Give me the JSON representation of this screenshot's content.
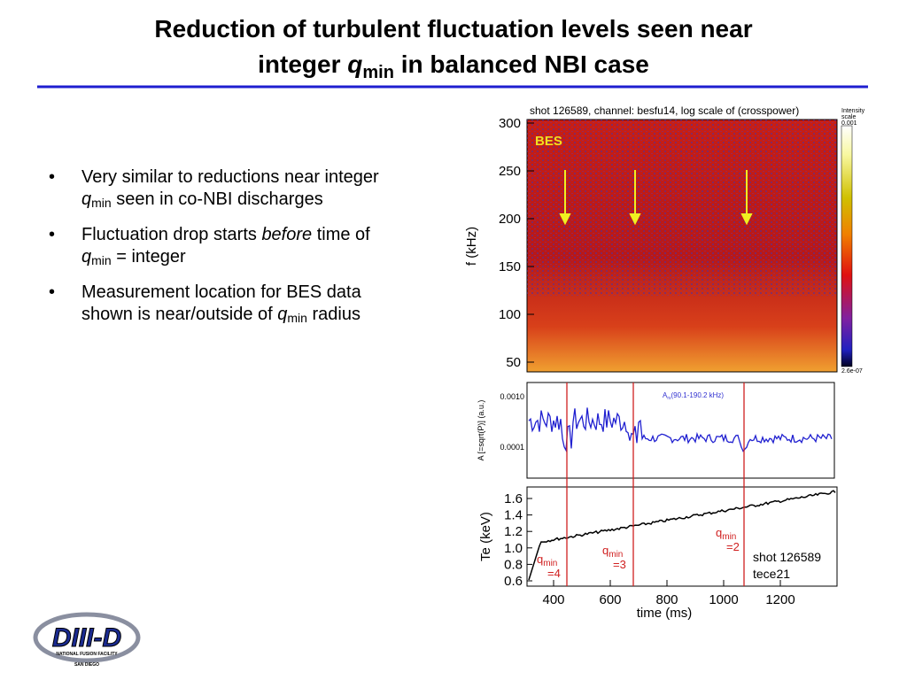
{
  "title": {
    "line1": "Reduction of turbulent fluctuation levels seen near",
    "line2_pre": "integer ",
    "q": "q",
    "sub": "min",
    "line2_post": " in balanced NBI case"
  },
  "bullets": [
    [
      {
        "text": "Very similar to reductions near integer "
      },
      {
        "text": "q",
        "style": "italic"
      },
      {
        "text": "min",
        "style": "sub"
      },
      {
        "text": " seen in co-NBI discharges"
      }
    ],
    [
      {
        "text": "Fluctuation drop starts "
      },
      {
        "text": "before",
        "style": "italic"
      },
      {
        "text": " time of "
      },
      {
        "text": "q",
        "style": "italic"
      },
      {
        "text": "min",
        "style": "sub"
      },
      {
        "text": " = integer"
      }
    ],
    [
      {
        "text": "Measurement location for BES data shown is near/outside of "
      },
      {
        "text": "q",
        "style": "italic"
      },
      {
        "text": "min",
        "style": "sub"
      },
      {
        "text": " radius"
      }
    ]
  ],
  "figure": {
    "spectrogram": {
      "title": "shot 126589, channel: besfu14, log scale of (crosspower)",
      "label": "BES",
      "ylabel": "f (kHz)",
      "yticks": [
        "300",
        "250",
        "200",
        "150",
        "100",
        "50"
      ],
      "colorbar": {
        "title1": "Intensity",
        "title2": "scale",
        "max": "0.001",
        "min": "2.6e-07"
      }
    },
    "amplitude": {
      "ylabel": "A [=sqrt(P)]  (a.u.)",
      "yticks": [
        "0.0010",
        "0.0001"
      ],
      "legend": "A",
      "legend_sub": "rs",
      "legend_post": "(90.1-190.2 kHz)"
    },
    "temperature": {
      "ylabel": "Te (keV)",
      "yticks": [
        "1.6",
        "1.4",
        "1.2",
        "1.0",
        "0.8",
        "0.6"
      ],
      "xticks": [
        "400",
        "600",
        "800",
        "1000",
        "1200"
      ],
      "xlabel": "time (ms)",
      "annotations": [
        {
          "q": "q",
          "sub": "min",
          "eq": "=4"
        },
        {
          "q": "q",
          "sub": "min",
          "eq": "=3"
        },
        {
          "q": "q",
          "sub": "min",
          "eq": "=2"
        }
      ],
      "shot": "shot 126589",
      "channel": "tece21"
    }
  },
  "logo": {
    "name": "DIII-D",
    "line1": "NATIONAL FUSION FACILITY",
    "line2": "SAN DIEGO"
  }
}
